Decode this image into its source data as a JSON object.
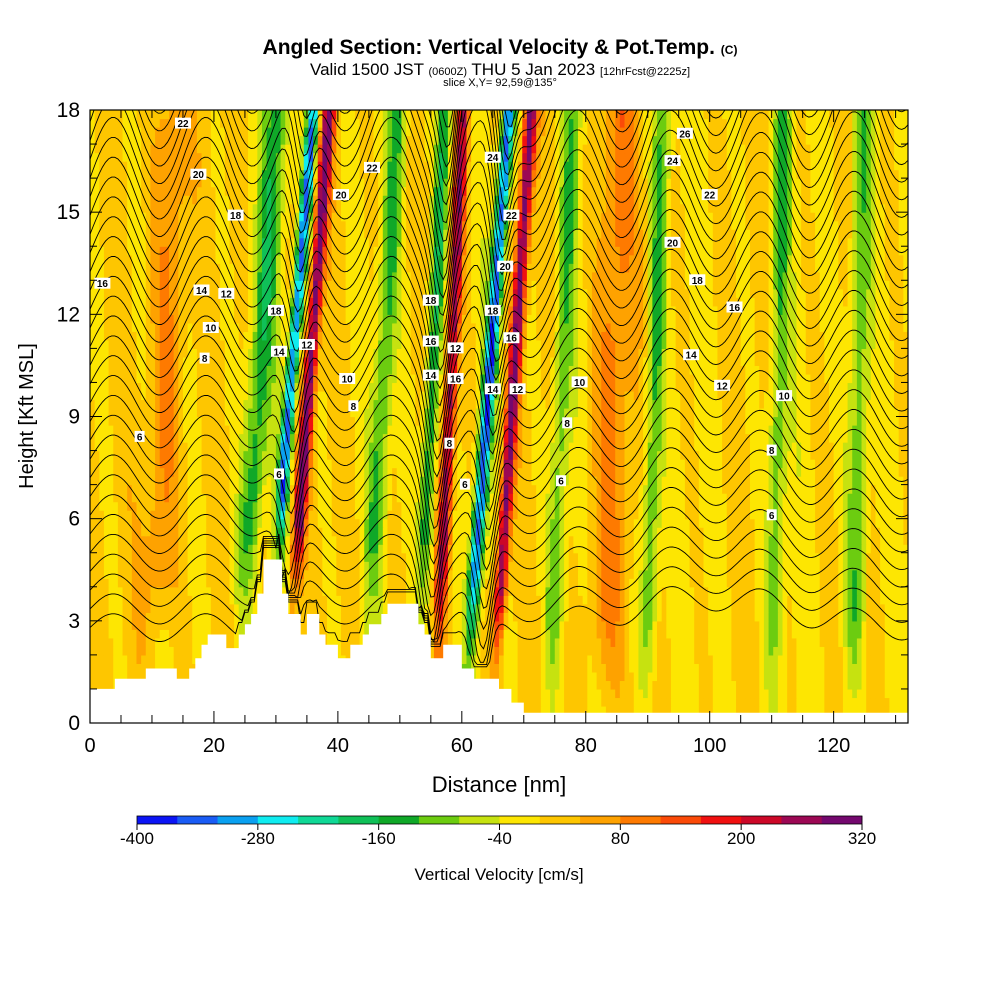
{
  "header": {
    "title_main": "Angled Section: Vertical Velocity & Pot.Temp.",
    "title_suffix": "(C)",
    "valid_prefix": "Valid 1500 JST",
    "valid_utc": "(0600Z)",
    "valid_date": "THU 5 Jan 2023",
    "valid_fcst": "[12hrFcst@2225z]",
    "slice": "slice X,Y= 92,59@135°"
  },
  "colorbar": {
    "label": "Vertical Velocity [cm/s]",
    "tick_labels": [
      "-400",
      "-280",
      "-160",
      "-40",
      "80",
      "200",
      "320"
    ],
    "colors": [
      "#0b14f5",
      "#1a5cf5",
      "#0aa0f0",
      "#10ecf0",
      "#10d896",
      "#10c058",
      "#10a828",
      "#6ccc10",
      "#c6e210",
      "#fde602",
      "#fec600",
      "#fea200",
      "#fe7a00",
      "#fb4a08",
      "#f01010",
      "#cc0828",
      "#9c0854",
      "#74086e",
      "#4c0a82"
    ]
  },
  "chart_data": {
    "type": "heatmap",
    "xlabel": "Distance [nm]",
    "ylabel": "Height [Kft MSL]",
    "xlim": [
      0,
      132
    ],
    "ylim": [
      0,
      18
    ],
    "x_ticks": [
      0,
      20,
      40,
      60,
      80,
      100,
      120
    ],
    "y_ticks": [
      0,
      3,
      6,
      9,
      12,
      15,
      18
    ],
    "velocity_range_cm_s": [
      -400,
      320
    ],
    "velocity_bands": [
      {
        "x": 32,
        "w": 0.9,
        "amp": -330,
        "tilt": 0.45
      },
      {
        "x": 35,
        "w": 1.0,
        "amp": 300,
        "tilt": 0.4
      },
      {
        "x": 27,
        "w": 2.0,
        "amp": -140,
        "tilt": 0.35
      },
      {
        "x": 55,
        "w": 1.2,
        "amp": -170,
        "tilt": 0.25
      },
      {
        "x": 58,
        "w": 1.0,
        "amp": 260,
        "tilt": 0.25
      },
      {
        "x": 64,
        "w": 1.0,
        "amp": -340,
        "tilt": 0.4
      },
      {
        "x": 68,
        "w": 1.0,
        "amp": 300,
        "tilt": 0.35
      },
      {
        "x": 47,
        "w": 1.5,
        "amp": -120,
        "tilt": 0.3
      },
      {
        "x": 76,
        "w": 1.6,
        "amp": -110,
        "tilt": 0.2
      },
      {
        "x": 91,
        "w": 1.5,
        "amp": -130,
        "tilt": 0.15
      },
      {
        "x": 111,
        "w": 1.5,
        "amp": -110,
        "tilt": 0.1
      },
      {
        "x": 124,
        "w": 1.8,
        "amp": -120,
        "tilt": 0.1
      },
      {
        "x": 12,
        "w": 3.0,
        "amp": 90,
        "tilt": 0.2
      },
      {
        "x": 84,
        "w": 3.0,
        "amp": 100,
        "tilt": 0.15
      }
    ],
    "terrain": [
      [
        0,
        1.0
      ],
      [
        4,
        1.0
      ],
      [
        4,
        1.3
      ],
      [
        9,
        1.3
      ],
      [
        9,
        1.6
      ],
      [
        14,
        1.6
      ],
      [
        14,
        1.3
      ],
      [
        16,
        1.3
      ],
      [
        16,
        1.6
      ],
      [
        17,
        1.6
      ],
      [
        17,
        1.9
      ],
      [
        18,
        1.9
      ],
      [
        18,
        2.3
      ],
      [
        19,
        2.3
      ],
      [
        19,
        2.6
      ],
      [
        22,
        2.6
      ],
      [
        22,
        2.2
      ],
      [
        24,
        2.2
      ],
      [
        24,
        2.6
      ],
      [
        25,
        2.6
      ],
      [
        25,
        2.9
      ],
      [
        26,
        2.9
      ],
      [
        26,
        3.2
      ],
      [
        27,
        3.2
      ],
      [
        27,
        3.8
      ],
      [
        28,
        3.8
      ],
      [
        28,
        4.8
      ],
      [
        31,
        4.8
      ],
      [
        31,
        3.8
      ],
      [
        32,
        3.8
      ],
      [
        32,
        3.2
      ],
      [
        34,
        3.2
      ],
      [
        34,
        2.6
      ],
      [
        35,
        2.6
      ],
      [
        35,
        3.2
      ],
      [
        37,
        3.2
      ],
      [
        37,
        2.6
      ],
      [
        38,
        2.6
      ],
      [
        38,
        2.3
      ],
      [
        40,
        2.3
      ],
      [
        40,
        1.9
      ],
      [
        42,
        1.9
      ],
      [
        42,
        2.3
      ],
      [
        44,
        2.3
      ],
      [
        44,
        2.6
      ],
      [
        45,
        2.6
      ],
      [
        45,
        2.9
      ],
      [
        47,
        2.9
      ],
      [
        47,
        3.2
      ],
      [
        48,
        3.2
      ],
      [
        48,
        3.5
      ],
      [
        53,
        3.5
      ],
      [
        53,
        2.9
      ],
      [
        54,
        2.9
      ],
      [
        54,
        2.6
      ],
      [
        55,
        2.6
      ],
      [
        55,
        1.9
      ],
      [
        57,
        1.9
      ],
      [
        57,
        2.3
      ],
      [
        60,
        2.3
      ],
      [
        60,
        1.6
      ],
      [
        62,
        1.6
      ],
      [
        62,
        1.3
      ],
      [
        66,
        1.3
      ],
      [
        66,
        1.0
      ],
      [
        68,
        1.0
      ],
      [
        68,
        0.6
      ],
      [
        70,
        0.6
      ],
      [
        70,
        0.3
      ],
      [
        132,
        0.3
      ]
    ],
    "theta_levels": [
      2,
      4,
      6,
      8,
      10,
      12,
      14,
      16,
      18,
      20,
      22,
      24,
      26
    ],
    "theta_labels": [
      {
        "x": 15,
        "y": 17.6,
        "v": "22"
      },
      {
        "x": 17.5,
        "y": 16.1,
        "v": "20"
      },
      {
        "x": 23.5,
        "y": 14.9,
        "v": "18"
      },
      {
        "x": 2,
        "y": 12.9,
        "v": "16"
      },
      {
        "x": 18,
        "y": 12.7,
        "v": "14"
      },
      {
        "x": 22,
        "y": 12.6,
        "v": "12"
      },
      {
        "x": 19.5,
        "y": 11.6,
        "v": "10"
      },
      {
        "x": 18.5,
        "y": 10.7,
        "v": "8"
      },
      {
        "x": 8,
        "y": 8.4,
        "v": "6"
      },
      {
        "x": 30,
        "y": 12.1,
        "v": "18"
      },
      {
        "x": 30.5,
        "y": 10.9,
        "v": "14"
      },
      {
        "x": 35,
        "y": 11.1,
        "v": "12"
      },
      {
        "x": 30.5,
        "y": 7.3,
        "v": "6"
      },
      {
        "x": 40.5,
        "y": 15.5,
        "v": "20"
      },
      {
        "x": 45.5,
        "y": 16.3,
        "v": "22"
      },
      {
        "x": 41.5,
        "y": 10.1,
        "v": "10"
      },
      {
        "x": 42.5,
        "y": 9.3,
        "v": "8"
      },
      {
        "x": 55,
        "y": 12.4,
        "v": "18"
      },
      {
        "x": 55,
        "y": 11.2,
        "v": "16"
      },
      {
        "x": 59,
        "y": 11.0,
        "v": "12"
      },
      {
        "x": 55,
        "y": 10.2,
        "v": "14"
      },
      {
        "x": 59,
        "y": 10.1,
        "v": "16"
      },
      {
        "x": 58,
        "y": 8.2,
        "v": "8"
      },
      {
        "x": 60.5,
        "y": 7.0,
        "v": "6"
      },
      {
        "x": 65,
        "y": 16.6,
        "v": "24"
      },
      {
        "x": 68,
        "y": 14.9,
        "v": "22"
      },
      {
        "x": 67,
        "y": 13.4,
        "v": "20"
      },
      {
        "x": 65,
        "y": 12.1,
        "v": "18"
      },
      {
        "x": 68,
        "y": 11.3,
        "v": "16"
      },
      {
        "x": 65,
        "y": 9.8,
        "v": "14"
      },
      {
        "x": 69,
        "y": 9.8,
        "v": "12"
      },
      {
        "x": 79,
        "y": 10.0,
        "v": "10"
      },
      {
        "x": 77,
        "y": 8.8,
        "v": "8"
      },
      {
        "x": 76,
        "y": 7.1,
        "v": "6"
      },
      {
        "x": 96,
        "y": 17.3,
        "v": "26"
      },
      {
        "x": 94,
        "y": 16.5,
        "v": "24"
      },
      {
        "x": 100,
        "y": 15.5,
        "v": "22"
      },
      {
        "x": 94,
        "y": 14.1,
        "v": "20"
      },
      {
        "x": 98,
        "y": 13.0,
        "v": "18"
      },
      {
        "x": 104,
        "y": 12.2,
        "v": "16"
      },
      {
        "x": 97,
        "y": 10.8,
        "v": "14"
      },
      {
        "x": 102,
        "y": 9.9,
        "v": "12"
      },
      {
        "x": 112,
        "y": 9.6,
        "v": "10"
      },
      {
        "x": 110,
        "y": 8.0,
        "v": "8"
      },
      {
        "x": 110,
        "y": 6.1,
        "v": "6"
      }
    ],
    "grid": false
  }
}
